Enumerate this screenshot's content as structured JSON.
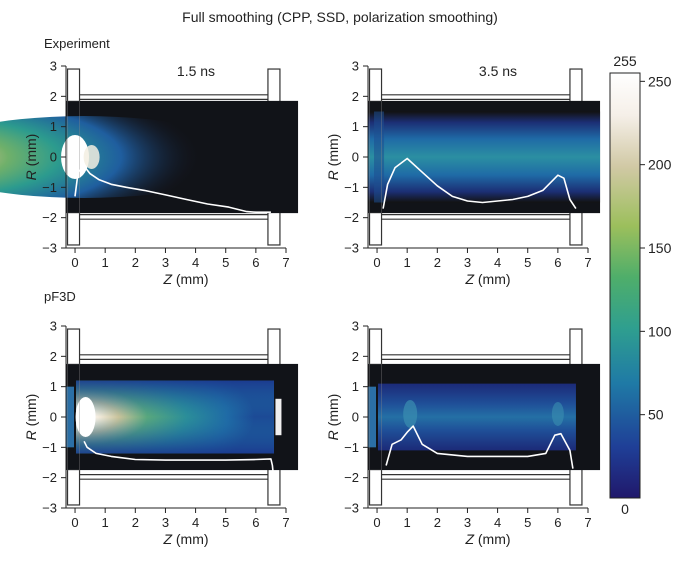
{
  "figure": {
    "title": "Full smoothing (CPP, SSD, polarization smoothing)",
    "row_labels": [
      "Experiment",
      "pF3D"
    ],
    "time_labels": [
      "1.5 ns",
      "3.5 ns"
    ]
  },
  "colorbar": {
    "top_label": "255",
    "bottom_label": "0",
    "ticks": [
      {
        "value": 250,
        "label": "250"
      },
      {
        "value": 200,
        "label": "200"
      },
      {
        "value": 150,
        "label": "150"
      },
      {
        "value": 100,
        "label": "100"
      },
      {
        "value": 50,
        "label": "50"
      }
    ],
    "stops": [
      "#20186b",
      "#1f3f97",
      "#1f7aa6",
      "#2f9f8f",
      "#4fae6a",
      "#9cbf5c",
      "#d1c9a5",
      "#f5efe8",
      "#ffffff"
    ]
  },
  "chart_data": [
    {
      "type": "heatmap",
      "panel": "Experiment 1.5 ns",
      "xlabel_var": "Z",
      "xlabel_unit": "(mm)",
      "ylabel_var": "R",
      "ylabel_unit": "(mm)",
      "xlim": [
        -0.3,
        7
      ],
      "ylim": [
        -3,
        3
      ],
      "xticks": [
        0,
        1,
        2,
        3,
        4,
        5,
        6,
        7
      ],
      "yticks": [
        3,
        2,
        1,
        0,
        -1,
        -2,
        -3
      ],
      "image_extent_z": [
        -0.3,
        7.4
      ],
      "image_extent_r": [
        -1.85,
        1.85
      ],
      "hot_spot_z": 0,
      "intensity_decay_z": 4.5,
      "intensity_peak": 255,
      "profile": {
        "x": [
          0,
          0.1,
          0.3,
          0.5,
          0.8,
          1.2,
          1.7,
          2.3,
          3.0,
          3.7,
          4.4,
          5.1,
          5.7,
          6.0,
          6.5
        ],
        "y": [
          -1.3,
          -0.5,
          -0.3,
          -0.55,
          -0.75,
          -0.9,
          -1.0,
          -1.1,
          -1.25,
          -1.4,
          -1.55,
          -1.65,
          -1.8,
          -1.82,
          -1.82
        ]
      }
    },
    {
      "type": "heatmap",
      "panel": "Experiment 3.5 ns",
      "xlabel_var": "Z",
      "xlabel_unit": "(mm)",
      "ylabel_var": "R",
      "ylabel_unit": "(mm)",
      "xlim": [
        -0.3,
        7
      ],
      "ylim": [
        -3,
        3
      ],
      "xticks": [
        0,
        1,
        2,
        3,
        4,
        5,
        6,
        7
      ],
      "yticks": [
        3,
        2,
        1,
        0,
        -1,
        -2,
        -3
      ],
      "image_extent_z": [
        -0.3,
        7.4
      ],
      "image_extent_r": [
        -1.85,
        1.85
      ],
      "intensity_peak": 110,
      "profile": {
        "x": [
          0.2,
          0.35,
          0.6,
          1.0,
          1.5,
          2.0,
          2.5,
          3.0,
          3.5,
          4.0,
          4.5,
          5.0,
          5.5,
          6.0,
          6.2,
          6.4,
          6.6
        ],
        "y": [
          -1.7,
          -0.9,
          -0.35,
          -0.05,
          -0.5,
          -0.95,
          -1.3,
          -1.45,
          -1.5,
          -1.45,
          -1.4,
          -1.3,
          -1.1,
          -0.6,
          -0.7,
          -1.4,
          -1.7
        ]
      }
    },
    {
      "type": "heatmap",
      "panel": "pF3D 1.5 ns",
      "xlabel_var": "Z",
      "xlabel_unit": "(mm)",
      "ylabel_var": "R",
      "ylabel_unit": "(mm)",
      "xlim": [
        -0.3,
        7
      ],
      "ylim": [
        -3,
        3
      ],
      "xticks": [
        0,
        1,
        2,
        3,
        4,
        5,
        6,
        7
      ],
      "yticks": [
        3,
        2,
        1,
        0,
        -1,
        -2,
        -3
      ],
      "image_extent_z": [
        -0.3,
        7.4
      ],
      "image_extent_r": [
        -1.75,
        1.75
      ],
      "hot_spot_z": 0.3,
      "intensity_peak": 255,
      "profile": {
        "x": [
          0.3,
          0.4,
          0.7,
          1.2,
          2.0,
          3.0,
          4.0,
          5.0,
          6.0,
          6.5,
          6.55,
          6.6
        ],
        "y": [
          -0.8,
          -1.0,
          -1.2,
          -1.3,
          -1.4,
          -1.42,
          -1.42,
          -1.42,
          -1.4,
          -1.38,
          -1.6,
          -2.1
        ]
      }
    },
    {
      "type": "heatmap",
      "panel": "pF3D 3.5 ns",
      "xlabel_var": "Z",
      "xlabel_unit": "(mm)",
      "ylabel_var": "R",
      "ylabel_unit": "(mm)",
      "xlim": [
        -0.3,
        7
      ],
      "ylim": [
        -3,
        3
      ],
      "xticks": [
        0,
        1,
        2,
        3,
        4,
        5,
        6,
        7
      ],
      "yticks": [
        3,
        2,
        1,
        0,
        -1,
        -2,
        -3
      ],
      "image_extent_z": [
        -0.3,
        7.4
      ],
      "image_extent_r": [
        -1.75,
        1.75
      ],
      "intensity_peak": 90,
      "profile": {
        "x": [
          0.3,
          0.5,
          0.8,
          1.0,
          1.2,
          1.5,
          2.0,
          3.0,
          4.0,
          5.0,
          5.6,
          5.9,
          6.1,
          6.4,
          6.5
        ],
        "y": [
          -1.6,
          -0.9,
          -0.75,
          -0.5,
          -0.3,
          -0.9,
          -1.2,
          -1.3,
          -1.3,
          -1.3,
          -1.2,
          -0.6,
          -0.55,
          -1.1,
          -1.7
        ]
      }
    }
  ]
}
